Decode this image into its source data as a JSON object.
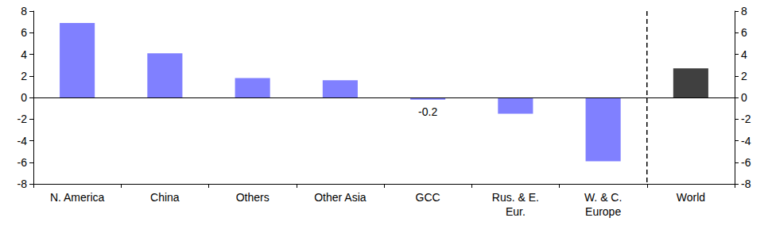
{
  "chart_data": {
    "type": "bar",
    "categories": [
      "N. America",
      "China",
      "Others",
      "Other Asia",
      "GCC",
      "Rus. & E.\nEur.",
      "W. & C.\nEurope",
      "World"
    ],
    "values": [
      6.9,
      4.1,
      1.8,
      1.6,
      -0.2,
      -1.5,
      -5.9,
      2.7
    ],
    "colors": [
      "#8080ff",
      "#8080ff",
      "#8080ff",
      "#8080ff",
      "#8080ff",
      "#8080ff",
      "#8080ff",
      "#404040"
    ],
    "annotations": [
      {
        "x": "GCC",
        "text": "-0.2"
      }
    ],
    "ylim": [
      -8,
      8
    ],
    "yticks": [
      -8,
      -6,
      -4,
      -2,
      0,
      2,
      4,
      6,
      8
    ],
    "grid": false
  }
}
